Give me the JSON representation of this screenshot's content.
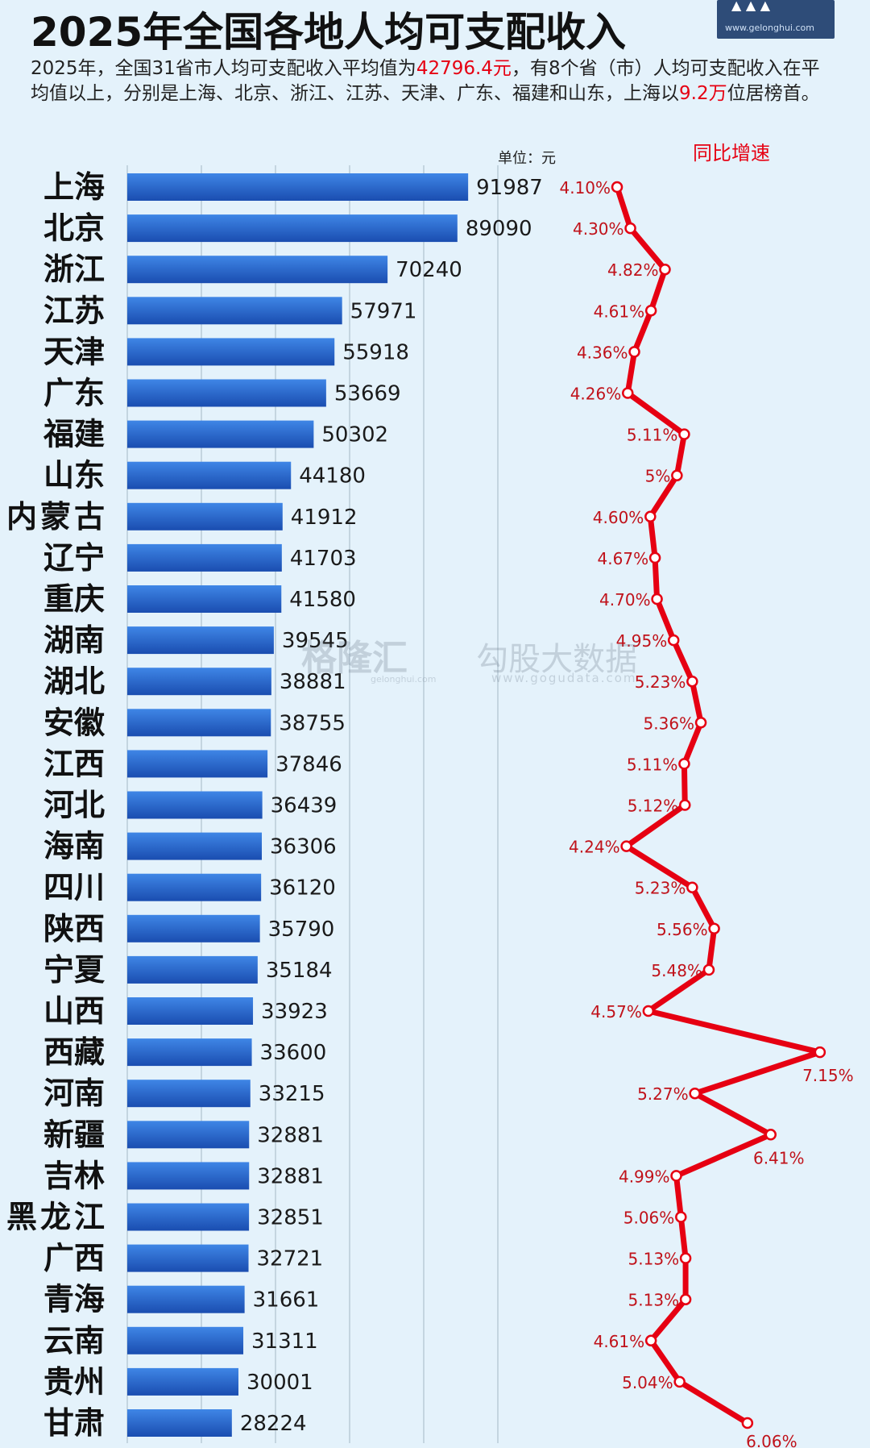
{
  "title": "2025年全国各地人均可支配收入",
  "logo": {
    "url": "www.gelonghui.com"
  },
  "subtitle": {
    "p1": "2025年，全国31省市人均可支配收入平均值为",
    "h1": "42796.4元",
    "p2": "，有8个省（市）人均可支配收入在平均值以上，分别是上海、北京、浙江、江苏、天津、广东、福建和山东，上海以",
    "h2": "9.2万",
    "p3": "位居榜首。"
  },
  "watermark": {
    "left_brand": "格隆汇",
    "left_url": "gelonghui.com",
    "right_brand": "勾股大数据",
    "right_url": "www.gogudata.com"
  },
  "colors": {
    "background": "#e4f2fb",
    "bar_dark": "#1a4db0",
    "bar_light": "#3f86e6",
    "line": "#e60012",
    "label_red": "#c0121a",
    "highlight": "#e60012"
  },
  "chart_data": {
    "type": "bar",
    "orientation": "horizontal",
    "unit_label": "单位：元",
    "growth_label": "同比增速",
    "categories": [
      "上海",
      "北京",
      "浙江",
      "江苏",
      "天津",
      "广东",
      "福建",
      "山东",
      "内蒙古",
      "辽宁",
      "重庆",
      "湖南",
      "湖北",
      "安徽",
      "江西",
      "河北",
      "海南",
      "四川",
      "陕西",
      "宁夏",
      "山西",
      "西藏",
      "河南",
      "新疆",
      "吉林",
      "黑龙江",
      "广西",
      "青海",
      "云南",
      "贵州",
      "甘肃"
    ],
    "series": [
      {
        "type": "bar",
        "values": [
          91987,
          89090,
          70240,
          57971,
          55918,
          53669,
          50302,
          44180,
          41912,
          41703,
          41580,
          39545,
          38881,
          38755,
          37846,
          36439,
          36306,
          36120,
          35790,
          35184,
          33923,
          33600,
          33215,
          32881,
          32881,
          32851,
          32721,
          31661,
          31311,
          30001,
          28224
        ]
      },
      {
        "type": "line",
        "values": [
          4.1,
          4.3,
          4.82,
          4.61,
          4.36,
          4.26,
          5.11,
          5,
          4.6,
          4.67,
          4.7,
          4.95,
          5.23,
          5.36,
          5.11,
          5.12,
          4.24,
          5.23,
          5.56,
          5.48,
          4.57,
          7.15,
          5.27,
          6.41,
          4.99,
          5.06,
          5.13,
          5.13,
          4.61,
          5.04,
          6.06
        ],
        "labels": [
          "4.10%",
          "4.30%",
          "4.82%",
          "4.61%",
          "4.36%",
          "4.26%",
          "5.11%",
          "5%",
          "4.60%",
          "4.67%",
          "4.70%",
          "4.95%",
          "5.23%",
          "5.36%",
          "5.11%",
          "5.12%",
          "4.24%",
          "5.23%",
          "5.56%",
          "5.48%",
          "4.57%",
          "7.15%",
          "5.27%",
          "6.41%",
          "4.99%",
          "5.06%",
          "5.13%",
          "5.13%",
          "4.61%",
          "5.04%",
          "6.06%"
        ]
      }
    ],
    "xlim": [
      0,
      100000
    ],
    "growth_xlim": [
      3.3,
      7.6
    ],
    "grid": true
  }
}
